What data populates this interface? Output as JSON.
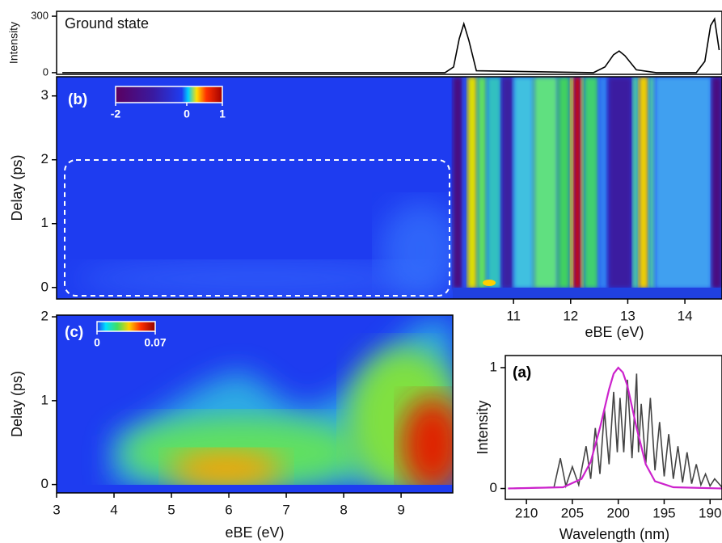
{
  "chart_data": [
    {
      "type": "line",
      "title": "Ground state",
      "y_label": "Intensity",
      "xlim": [
        3,
        14.65
      ],
      "ylim": [
        -9,
        326
      ],
      "yticks": [
        0,
        300
      ],
      "series": [
        {
          "color": "#000000",
          "x": [
            3.1,
            9.8,
            9.95,
            10.05,
            10.13,
            10.22,
            10.35,
            12.4,
            12.6,
            12.75,
            12.85,
            12.95,
            13.15,
            13.5,
            14.2,
            14.35,
            14.45,
            14.52,
            14.6
          ],
          "values": [
            0,
            0,
            30,
            180,
            260,
            170,
            10,
            0,
            30,
            95,
            115,
            90,
            15,
            0,
            0,
            60,
            250,
            285,
            120
          ]
        }
      ]
    },
    {
      "type": "heatmap",
      "panel_label": "(b)",
      "x_label": "eBE (eV)",
      "y_label": "Delay (ps)",
      "xlim": [
        3,
        14.65
      ],
      "ylim": [
        -0.18,
        3.3
      ],
      "xticks": [
        11,
        12,
        13,
        14
      ],
      "yticks": [
        0,
        1,
        2,
        3
      ],
      "colorbar_lim": [
        -2,
        1
      ],
      "colorbar_ticks": [
        -2,
        0,
        1
      ]
    },
    {
      "type": "heatmap",
      "panel_label": "(c)",
      "x_label": "eBE (eV)",
      "y_label": "Delay (ps)",
      "xlim": [
        3,
        9.9
      ],
      "ylim": [
        -0.1,
        2.02
      ],
      "xticks": [
        3,
        4,
        5,
        6,
        7,
        8,
        9
      ],
      "yticks": [
        0,
        1,
        2
      ],
      "colorbar_lim": [
        0,
        0.07
      ],
      "colorbar_ticks": [
        0,
        0.07
      ]
    },
    {
      "type": "line",
      "panel_label": "(a)",
      "x_label": "Wavelength (nm)",
      "y_label": "Intensity",
      "xlim": [
        212.3,
        188.7
      ],
      "ylim": [
        -0.09,
        1.1
      ],
      "xticks": [
        210,
        205,
        200,
        195,
        190
      ],
      "yticks": [
        0,
        1
      ],
      "series": [
        {
          "color": "#444444",
          "x": [
            212,
            207,
            206.3,
            205.7,
            205,
            204.3,
            203.5,
            203,
            202.5,
            202,
            201.5,
            201,
            200.5,
            200.1,
            199.8,
            199.4,
            199,
            198.5,
            198,
            197.8,
            197.5,
            197,
            196.5,
            196,
            195.5,
            195,
            194.5,
            194,
            193.5,
            193,
            192.5,
            192,
            191.5,
            191,
            190.5,
            190,
            189.5,
            188.7
          ],
          "values": [
            0,
            0.01,
            0.25,
            0.02,
            0.18,
            0.03,
            0.35,
            0.08,
            0.5,
            0.12,
            0.65,
            0.2,
            0.8,
            0.3,
            0.75,
            0.3,
            0.9,
            0.25,
            0.95,
            0.3,
            0.7,
            0.2,
            0.75,
            0.15,
            0.55,
            0.1,
            0.45,
            0.08,
            0.35,
            0.05,
            0.3,
            0.04,
            0.2,
            0.03,
            0.12,
            0.02,
            0.08,
            0.01
          ]
        },
        {
          "color": "#cc22cc",
          "x": [
            212,
            206,
            204,
            203,
            202,
            201,
            200.5,
            200,
            199.5,
            199,
            198,
            197,
            196,
            194,
            188.7
          ],
          "values": [
            0,
            0.01,
            0.08,
            0.22,
            0.5,
            0.82,
            0.95,
            1,
            0.96,
            0.85,
            0.5,
            0.2,
            0.06,
            0.01,
            0
          ]
        }
      ]
    }
  ]
}
